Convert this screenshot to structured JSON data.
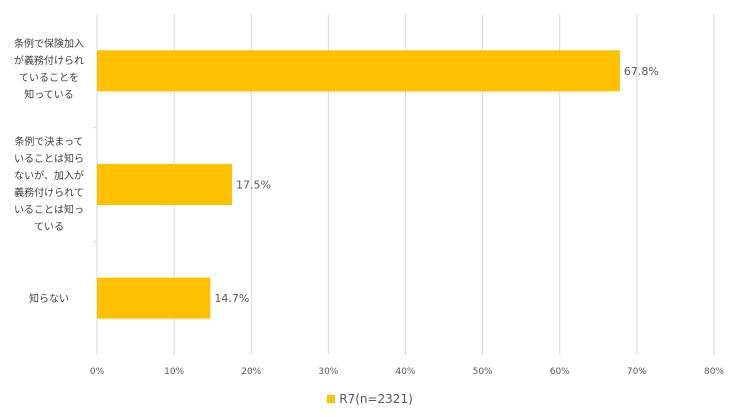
{
  "colors": {
    "bar": "#FFC000",
    "grid": "#D9D9D9",
    "text": "#595959"
  },
  "chart_data": {
    "type": "bar",
    "orientation": "horizontal",
    "categories": [
      "条例で保険加入\nが義務付けられ\nていることを\n知っている",
      "条例で決まって\nいることは知ら\nないが、加入が\n義務付けられて\nいることは知っ\nている",
      "知らない"
    ],
    "series": [
      {
        "name": "R7(n=2321)",
        "values": [
          67.8,
          17.5,
          14.7
        ]
      }
    ],
    "data_labels": [
      "67.8%",
      "17.5%",
      "14.7%"
    ],
    "x_ticks": [
      "0%",
      "10%",
      "20%",
      "30%",
      "40%",
      "50%",
      "60%",
      "70%",
      "80%"
    ],
    "xlim": [
      0,
      80
    ],
    "grid": true,
    "legend_position": "bottom"
  }
}
